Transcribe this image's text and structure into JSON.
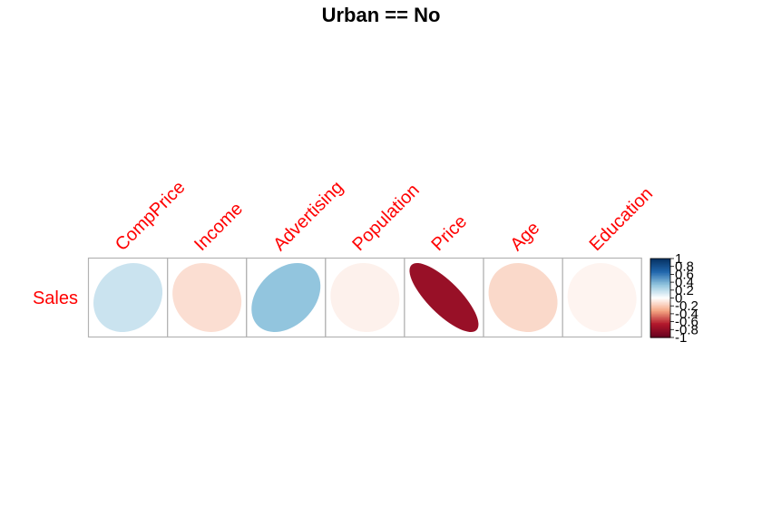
{
  "chart_data": {
    "type": "heatmap",
    "title": "Urban == No",
    "rows": [
      "Sales"
    ],
    "columns": [
      "CompPrice",
      "Income",
      "Advertising",
      "Population",
      "Price",
      "Age",
      "Education"
    ],
    "values": [
      [
        0.16,
        -0.12,
        0.33,
        -0.05,
        -0.78,
        -0.14,
        -0.04
      ]
    ],
    "shape": "ellipse",
    "colorbar": {
      "ticks": [
        "1",
        "0.8",
        "0.6",
        "0.4",
        "0.2",
        "0",
        "-0.2",
        "-0.4",
        "-0.6",
        "-0.8",
        "-1"
      ],
      "range": [
        -1,
        1
      ]
    },
    "label_color": "#ff0000",
    "colors": {
      "negative_end": "#67001f",
      "negative_mid": "#b2182b",
      "negative_light": "#f4a582",
      "neutral": "#ffffff",
      "positive_light": "#92c5de",
      "positive_mid": "#2166ac",
      "positive_end": "#053061"
    }
  }
}
